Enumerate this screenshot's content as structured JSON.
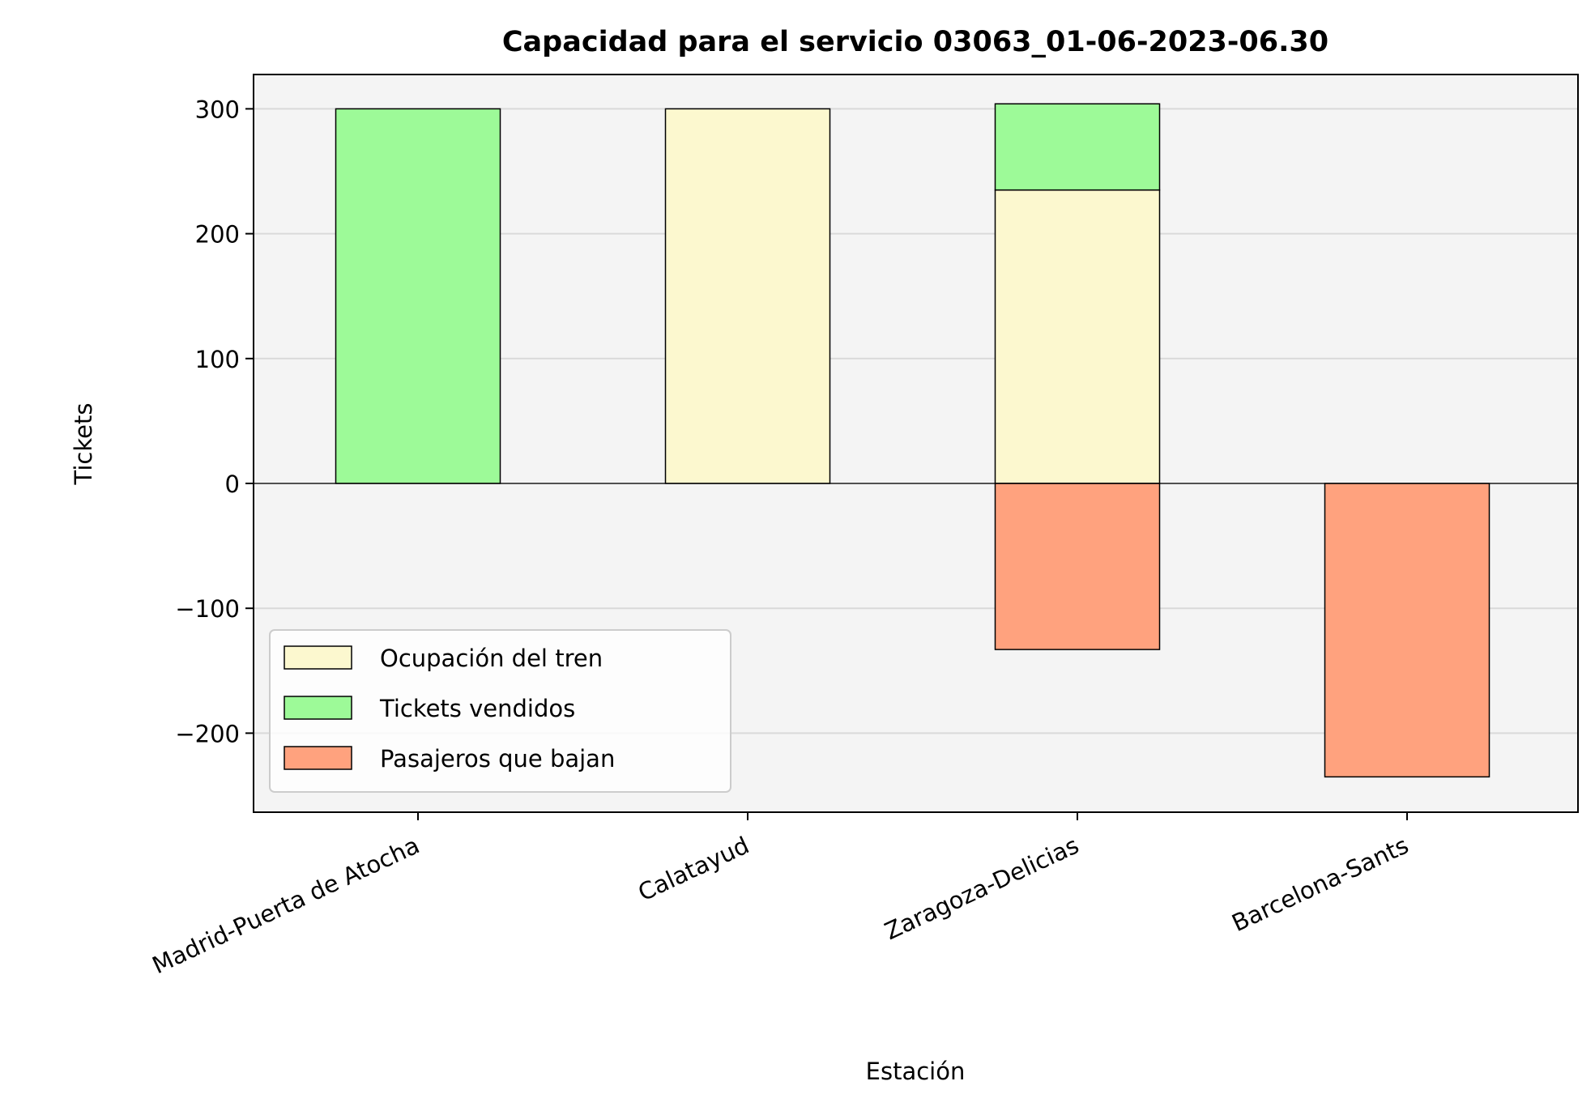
{
  "chart_data": {
    "type": "bar",
    "title": "Capacidad para el servicio 03063_01-06-2023-06.30",
    "xlabel": "Estación",
    "ylabel": "Tickets",
    "categories": [
      "Madrid-Puerta de Atocha",
      "Calatayud",
      "Zaragoza-Delicias",
      "Barcelona-Sants"
    ],
    "ylim": [
      -262,
      328
    ],
    "yticks": [
      -200,
      -100,
      0,
      100,
      200,
      300
    ],
    "ytick_labels": [
      "−200",
      "−100",
      "0",
      "100",
      "200",
      "300"
    ],
    "grid": true,
    "legend_position": "lower-left",
    "series": [
      {
        "name": "Ocupación del tren",
        "color": "#fcf8cf",
        "values": [
          0,
          300,
          235,
          0
        ]
      },
      {
        "name": "Tickets vendidos",
        "color": "#9dfa98",
        "values": [
          300,
          0,
          69,
          0
        ]
      },
      {
        "name": "Pasajeros que bajan",
        "color": "#ffa27e",
        "values": [
          0,
          0,
          -133,
          -235
        ]
      }
    ]
  }
}
